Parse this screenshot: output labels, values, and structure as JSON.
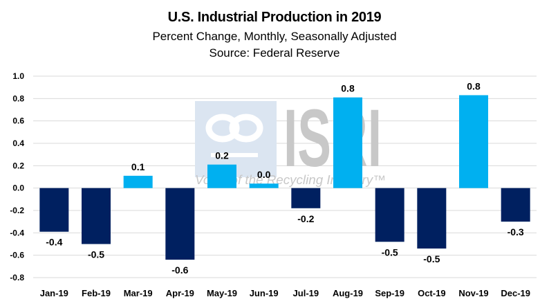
{
  "chart_data": {
    "type": "bar",
    "title": "U.S. Industrial Production in 2019",
    "subtitle": "Percent Change, Monthly, Seasonally Adjusted",
    "source": "Source: Federal Reserve",
    "xlabel": "",
    "ylabel": "",
    "categories": [
      "Jan-19",
      "Feb-19",
      "Mar-19",
      "Apr-19",
      "May-19",
      "Jun-19",
      "Jul-19",
      "Aug-19",
      "Sep-19",
      "Oct-19",
      "Nov-19",
      "Dec-19"
    ],
    "values": [
      -0.39,
      -0.5,
      0.11,
      -0.64,
      0.21,
      0.04,
      -0.18,
      0.81,
      -0.48,
      -0.54,
      0.83,
      -0.3
    ],
    "data_labels": [
      "-0.4",
      "-0.5",
      "0.1",
      "-0.6",
      "0.2",
      "0.0",
      "-0.2",
      "0.8",
      "-0.5",
      "-0.5",
      "0.8",
      "-0.3"
    ],
    "ylim": [
      -0.8,
      1.0
    ],
    "yticks": [
      1.0,
      0.8,
      0.6,
      0.4,
      0.2,
      0.0,
      -0.2,
      -0.4,
      -0.6,
      -0.8
    ],
    "ytick_labels": [
      "1.0",
      "0.8",
      "0.6",
      "0.4",
      "0.2",
      "0.0",
      "-0.2",
      "-0.4",
      "-0.6",
      "-0.8"
    ],
    "grid": true,
    "legend": "none",
    "colors": {
      "positive": "#00b0f0",
      "negative": "#002060",
      "grid": "#d9d9d9"
    }
  },
  "watermark": {
    "logo_text": "ISRI",
    "tagline": "Voice of the Recycling Industry™"
  }
}
